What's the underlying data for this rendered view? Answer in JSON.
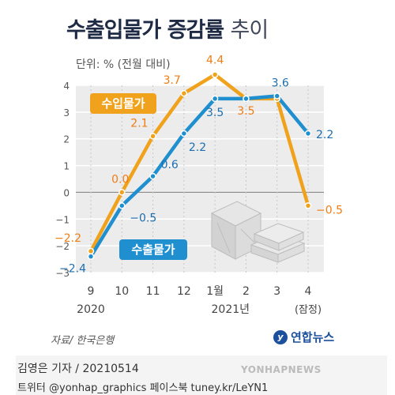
{
  "title": {
    "main": "수출입물가 증감률",
    "sub": "추이"
  },
  "unit_label": "단위: % (전월 대비)",
  "source": "자료/ 한국은행",
  "brand": {
    "mark": "y",
    "name": "연합뉴스"
  },
  "byline": "김영은 기자 / 20210514",
  "social": "트위터 @yonhap_graphics  페이스북 tuney.kr/LeYN1",
  "watermark": "YONHAPNEWS",
  "colors": {
    "import": "#f0a21c",
    "import_label": "#ef7d14",
    "export": "#1f8fd0",
    "export_label": "#1d6eaf"
  },
  "icons": [
    "crate-icon",
    "stacked-boxes-icon"
  ],
  "chart_data": {
    "type": "line",
    "categories": [
      "9",
      "10",
      "11",
      "12",
      "1월",
      "2",
      "3",
      "4"
    ],
    "year_labels": [
      {
        "text": "2020",
        "at": 0
      },
      {
        "text": "2021년",
        "at": 4.5
      }
    ],
    "note_labels": [
      {
        "text": "(잠정)",
        "at": 7
      }
    ],
    "ylim": [
      -3,
      4
    ],
    "yticks": [
      -3,
      -2,
      -1,
      0,
      1,
      2,
      3,
      4
    ],
    "grid": true,
    "series": [
      {
        "name": "수입물가",
        "color_key": "import",
        "values": [
          -2.2,
          0.0,
          2.1,
          3.7,
          4.4,
          3.5,
          3.5,
          -0.5
        ],
        "value_labels": [
          "−2.2",
          "0.0",
          "2.1",
          "3.7",
          "4.4",
          "3.5",
          "",
          "−0.5"
        ]
      },
      {
        "name": "수출물가",
        "color_key": "export",
        "values": [
          -2.4,
          -0.5,
          0.6,
          2.2,
          3.5,
          3.5,
          3.6,
          2.2
        ],
        "value_labels": [
          "−2.4",
          "−0.5",
          "0.6",
          "2.2",
          "3.5",
          "",
          "3.6",
          "2.2"
        ]
      }
    ]
  }
}
